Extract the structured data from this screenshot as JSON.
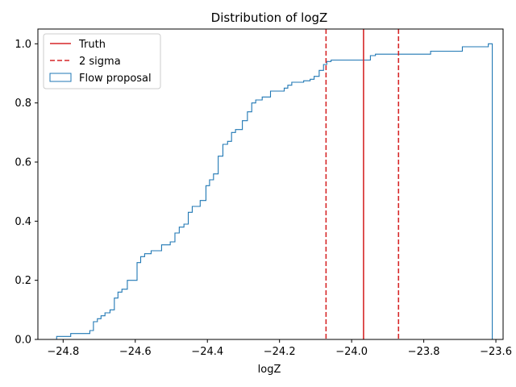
{
  "chart_data": {
    "type": "step",
    "title": "Distribution of logZ",
    "xlabel": "logZ",
    "ylabel": "",
    "xlim": [
      -24.87,
      -23.58
    ],
    "ylim": [
      0,
      1.05
    ],
    "xticks": [
      -24.8,
      -24.6,
      -24.4,
      -24.2,
      -24.0,
      -23.8,
      -23.6
    ],
    "xtick_labels": [
      "−24.8",
      "−24.6",
      "−24.4",
      "−24.2",
      "−24.0",
      "−23.8",
      "−23.6"
    ],
    "yticks": [
      0.0,
      0.2,
      0.4,
      0.6,
      0.8,
      1.0
    ],
    "ytick_labels": [
      "0.0",
      "0.2",
      "0.4",
      "0.6",
      "0.8",
      "1.0"
    ],
    "grid": false,
    "legend_position": "top-left",
    "legend": [
      {
        "label": "Truth",
        "style": "solid-line",
        "color": "#d62728"
      },
      {
        "label": "2 sigma",
        "style": "dashed-line",
        "color": "#d62728"
      },
      {
        "label": "Flow proposal",
        "style": "box",
        "color": "#1f77b4"
      }
    ],
    "series": [
      {
        "name": "Flow proposal",
        "kind": "cumulative-step",
        "color": "#1f77b4",
        "points": [
          [
            -24.818,
            0.01
          ],
          [
            -24.779,
            0.02
          ],
          [
            -24.726,
            0.03
          ],
          [
            -24.716,
            0.06
          ],
          [
            -24.705,
            0.07
          ],
          [
            -24.695,
            0.08
          ],
          [
            -24.684,
            0.09
          ],
          [
            -24.67,
            0.1
          ],
          [
            -24.658,
            0.14
          ],
          [
            -24.648,
            0.16
          ],
          [
            -24.637,
            0.17
          ],
          [
            -24.622,
            0.2
          ],
          [
            -24.595,
            0.26
          ],
          [
            -24.585,
            0.28
          ],
          [
            -24.574,
            0.29
          ],
          [
            -24.556,
            0.3
          ],
          [
            -24.527,
            0.32
          ],
          [
            -24.503,
            0.33
          ],
          [
            -24.49,
            0.36
          ],
          [
            -24.478,
            0.38
          ],
          [
            -24.465,
            0.39
          ],
          [
            -24.453,
            0.43
          ],
          [
            -24.442,
            0.45
          ],
          [
            -24.42,
            0.47
          ],
          [
            -24.404,
            0.52
          ],
          [
            -24.394,
            0.54
          ],
          [
            -24.383,
            0.56
          ],
          [
            -24.37,
            0.62
          ],
          [
            -24.357,
            0.66
          ],
          [
            -24.344,
            0.67
          ],
          [
            -24.333,
            0.7
          ],
          [
            -24.322,
            0.71
          ],
          [
            -24.303,
            0.74
          ],
          [
            -24.289,
            0.77
          ],
          [
            -24.277,
            0.8
          ],
          [
            -24.266,
            0.81
          ],
          [
            -24.248,
            0.82
          ],
          [
            -24.225,
            0.84
          ],
          [
            -24.187,
            0.85
          ],
          [
            -24.177,
            0.86
          ],
          [
            -24.166,
            0.87
          ],
          [
            -24.133,
            0.875
          ],
          [
            -24.115,
            0.88
          ],
          [
            -24.104,
            0.89
          ],
          [
            -24.09,
            0.91
          ],
          [
            -24.078,
            0.93
          ],
          [
            -24.069,
            0.94
          ],
          [
            -24.057,
            0.945
          ],
          [
            -23.948,
            0.96
          ],
          [
            -23.934,
            0.965
          ],
          [
            -23.781,
            0.975
          ],
          [
            -23.693,
            0.99
          ],
          [
            -23.621,
            1.0
          ],
          [
            -23.61,
            0.0
          ]
        ]
      }
    ],
    "vlines": [
      {
        "name": "Truth",
        "x": -23.967,
        "style": "solid",
        "color": "#d62728"
      },
      {
        "name": "2 sigma",
        "x": -24.071,
        "style": "dashed",
        "color": "#d62728"
      },
      {
        "name": "2 sigma",
        "x": -23.87,
        "style": "dashed",
        "color": "#d62728"
      }
    ]
  }
}
